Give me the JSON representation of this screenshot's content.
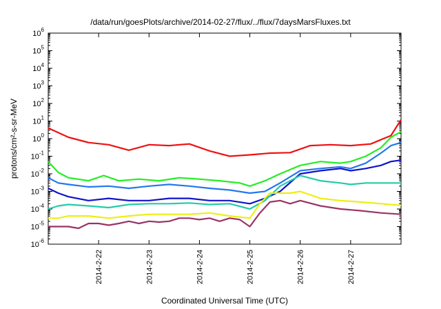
{
  "chart_data": {
    "type": "line",
    "title": "/data/run/goesPlots/archive/2014-02-27/flux/../flux/7daysMarsFluxes.txt",
    "xlabel": "Coordinated Universal Time (UTC)",
    "ylabel": "protons/cm²-s-sr-MeV",
    "y_scale": "log",
    "ylim": [
      1e-06,
      1000000.0
    ],
    "xlim": [
      0,
      7
    ],
    "y_ticks": [
      {
        "base": "10",
        "exp": "-6"
      },
      {
        "base": "10",
        "exp": "-5"
      },
      {
        "base": "10",
        "exp": "-4"
      },
      {
        "base": "10",
        "exp": "-3"
      },
      {
        "base": "10",
        "exp": "-2"
      },
      {
        "base": "10",
        "exp": "-1"
      },
      {
        "base": "10",
        "exp": "0"
      },
      {
        "base": "10",
        "exp": "1"
      },
      {
        "base": "10",
        "exp": "2"
      },
      {
        "base": "10",
        "exp": "3"
      },
      {
        "base": "10",
        "exp": "4"
      },
      {
        "base": "10",
        "exp": "5"
      },
      {
        "base": "10",
        "exp": "6"
      }
    ],
    "x_ticks": [
      {
        "label": "2014-2-22",
        "x": 1
      },
      {
        "label": "2014-2-23",
        "x": 2
      },
      {
        "label": "2014-2-24",
        "x": 3
      },
      {
        "label": "2014-2-25",
        "x": 4
      },
      {
        "label": "2014-2-26",
        "x": 5
      },
      {
        "label": "2014-2-27",
        "x": 6
      }
    ],
    "grid": false,
    "legend": "none",
    "series": [
      {
        "color": "#ee1111",
        "x": [
          0,
          0.4,
          0.8,
          1.2,
          1.6,
          2.0,
          2.4,
          2.8,
          3.2,
          3.6,
          4.0,
          4.4,
          4.8,
          5.2,
          5.6,
          6.0,
          6.4,
          6.8,
          7.0
        ],
        "y": [
          4,
          1.2,
          0.6,
          0.45,
          0.22,
          0.45,
          0.4,
          0.5,
          0.2,
          0.1,
          0.12,
          0.15,
          0.16,
          0.4,
          0.45,
          0.4,
          0.5,
          1.5,
          12
        ]
      },
      {
        "color": "#22ee22",
        "x": [
          0,
          0.2,
          0.4,
          0.8,
          1.1,
          1.4,
          1.8,
          2.2,
          2.6,
          3.0,
          3.4,
          3.8,
          4.0,
          4.3,
          4.6,
          5.0,
          5.4,
          5.8,
          6.0,
          6.3,
          6.6,
          6.8,
          7.0
        ],
        "y": [
          0.05,
          0.012,
          0.006,
          0.004,
          0.008,
          0.004,
          0.005,
          0.004,
          0.006,
          0.005,
          0.004,
          0.003,
          0.002,
          0.004,
          0.01,
          0.03,
          0.05,
          0.04,
          0.05,
          0.1,
          0.3,
          1.2,
          2.5
        ]
      },
      {
        "color": "#2277ee",
        "x": [
          0,
          0.2,
          0.4,
          0.8,
          1.2,
          1.6,
          2.0,
          2.4,
          2.8,
          3.2,
          3.6,
          4.0,
          4.3,
          4.6,
          5.0,
          5.4,
          5.8,
          6.0,
          6.3,
          6.6,
          6.8,
          7.0
        ],
        "y": [
          0.006,
          0.003,
          0.0025,
          0.0018,
          0.002,
          0.0015,
          0.002,
          0.0025,
          0.002,
          0.0015,
          0.0012,
          0.0008,
          0.001,
          0.003,
          0.015,
          0.02,
          0.025,
          0.02,
          0.04,
          0.15,
          0.4,
          0.6
        ]
      },
      {
        "color": "#1111cc",
        "x": [
          0,
          0.2,
          0.4,
          0.8,
          1.2,
          1.6,
          2.0,
          2.4,
          2.8,
          3.2,
          3.6,
          4.0,
          4.3,
          4.6,
          5.0,
          5.4,
          5.8,
          6.0,
          6.3,
          6.6,
          6.8,
          7.0
        ],
        "y": [
          0.0015,
          0.0008,
          0.0005,
          0.0003,
          0.0004,
          0.0003,
          0.0003,
          0.0004,
          0.0004,
          0.0003,
          0.0003,
          0.0002,
          0.0004,
          0.001,
          0.01,
          0.015,
          0.02,
          0.015,
          0.02,
          0.03,
          0.05,
          0.06
        ]
      },
      {
        "color": "#22ccaa",
        "x": [
          0,
          0.2,
          0.4,
          0.8,
          1.2,
          1.6,
          2.0,
          2.4,
          2.8,
          3.2,
          3.6,
          4.0,
          4.3,
          4.6,
          5.0,
          5.4,
          5.8,
          6.0,
          6.3,
          6.6,
          7.0
        ],
        "y": [
          0.0001,
          0.00015,
          0.00018,
          0.00015,
          0.00012,
          0.00018,
          0.0002,
          0.0002,
          0.00022,
          0.00018,
          0.0002,
          0.0001,
          0.0003,
          0.002,
          0.008,
          0.004,
          0.003,
          0.0025,
          0.003,
          0.003,
          0.003
        ]
      },
      {
        "color": "#eeee11",
        "x": [
          0,
          0.2,
          0.4,
          0.8,
          1.2,
          1.6,
          2.0,
          2.4,
          2.8,
          3.2,
          3.6,
          4.0,
          4.2,
          4.4,
          4.8,
          5.0,
          5.4,
          5.8,
          6.2,
          6.6,
          7.0
        ],
        "y": [
          3e-05,
          3e-05,
          4e-05,
          4e-05,
          3e-05,
          4e-05,
          5e-05,
          5e-05,
          5e-05,
          6e-05,
          4e-05,
          3e-05,
          0.0002,
          0.0008,
          0.0008,
          0.001,
          0.0004,
          0.0003,
          0.00025,
          0.0002,
          0.00016
        ]
      },
      {
        "color": "#993366",
        "x": [
          0,
          0.2,
          0.4,
          0.6,
          0.8,
          1.0,
          1.2,
          1.4,
          1.6,
          1.8,
          2.0,
          2.2,
          2.4,
          2.6,
          2.8,
          3.0,
          3.2,
          3.4,
          3.6,
          3.8,
          4.0,
          4.2,
          4.4,
          4.6,
          4.8,
          5.0,
          5.4,
          5.8,
          6.2,
          6.6,
          7.0
        ],
        "y": [
          1e-05,
          1e-05,
          1e-05,
          8e-06,
          1.5e-05,
          1.5e-05,
          1.2e-05,
          1.5e-05,
          2e-05,
          1.5e-05,
          2e-05,
          1.8e-05,
          2e-05,
          3e-05,
          3e-05,
          2.5e-05,
          3e-05,
          2e-05,
          3e-05,
          2.5e-05,
          1e-05,
          6e-05,
          0.00025,
          0.0003,
          0.0002,
          0.0003,
          0.00015,
          0.0001,
          8e-05,
          6e-05,
          5e-05
        ]
      }
    ]
  }
}
